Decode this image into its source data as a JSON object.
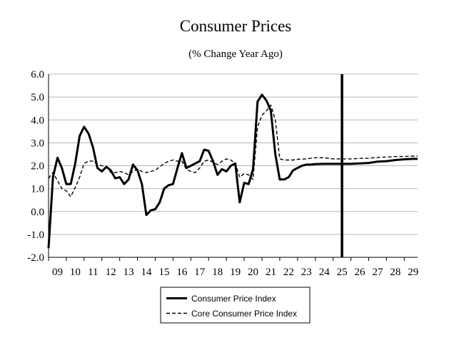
{
  "chart_data": {
    "type": "line",
    "title": "Consumer Prices",
    "subtitle": "(% Change Year Ago)",
    "xlabel": "",
    "ylabel": "",
    "ylim": [
      -2.0,
      6.0
    ],
    "yticks": [
      "6.0",
      "5.0",
      "4.0",
      "3.0",
      "2.0",
      "1.0",
      "0.0",
      "-1.0",
      "-2.0"
    ],
    "xlim": [
      2009.0,
      2029.75
    ],
    "xticks": [
      "09",
      "10",
      "11",
      "12",
      "13",
      "14",
      "15",
      "16",
      "17",
      "18",
      "19",
      "20",
      "21",
      "22",
      "23",
      "24",
      "25",
      "26",
      "27",
      "28",
      "29"
    ],
    "grid": true,
    "vertical_marker": 2025.5,
    "legend_position": "bottom",
    "series": [
      {
        "name": "Consumer Price Index",
        "style": "solid",
        "x": [
          2009.0,
          2009.25,
          2009.5,
          2009.75,
          2010.0,
          2010.25,
          2010.5,
          2010.75,
          2011.0,
          2011.25,
          2011.5,
          2011.75,
          2012.0,
          2012.25,
          2012.5,
          2012.75,
          2013.0,
          2013.25,
          2013.5,
          2013.75,
          2014.0,
          2014.25,
          2014.5,
          2014.75,
          2015.0,
          2015.25,
          2015.5,
          2015.75,
          2016.0,
          2016.25,
          2016.5,
          2016.75,
          2017.0,
          2017.25,
          2017.5,
          2017.75,
          2018.0,
          2018.25,
          2018.5,
          2018.75,
          2019.0,
          2019.25,
          2019.5,
          2019.75,
          2020.0,
          2020.25,
          2020.5,
          2020.75,
          2021.0,
          2021.25,
          2021.5,
          2021.75,
          2022.0,
          2022.25,
          2022.5,
          2022.75,
          2023.0,
          2023.25,
          2023.5,
          2023.75,
          2024.0,
          2024.5,
          2025.0,
          2025.5,
          2026.0,
          2026.5,
          2027.0,
          2027.5,
          2028.0,
          2028.5,
          2029.0,
          2029.5,
          2029.75
        ],
        "values": [
          -1.6,
          1.5,
          2.35,
          1.9,
          1.2,
          1.2,
          2.1,
          3.3,
          3.7,
          3.4,
          2.8,
          1.9,
          1.75,
          1.95,
          1.8,
          1.45,
          1.5,
          1.2,
          1.4,
          2.05,
          1.8,
          1.2,
          -0.15,
          0.05,
          0.1,
          0.4,
          1.0,
          1.15,
          1.2,
          1.9,
          2.55,
          1.9,
          2.0,
          2.1,
          2.2,
          2.7,
          2.65,
          2.2,
          1.6,
          1.85,
          1.75,
          2.0,
          2.1,
          0.4,
          1.25,
          1.2,
          1.85,
          4.8,
          5.1,
          4.85,
          4.4,
          2.5,
          1.4,
          1.4,
          1.5,
          1.8,
          1.9,
          2.0,
          2.05,
          2.05,
          2.07,
          2.08,
          2.08,
          2.08,
          2.08,
          2.1,
          2.12,
          2.18,
          2.2,
          2.25,
          2.28,
          2.3,
          2.3
        ]
      },
      {
        "name": "Core Consumer Price Index",
        "style": "dashed",
        "x": [
          2009.0,
          2009.25,
          2009.5,
          2009.75,
          2010.0,
          2010.25,
          2010.5,
          2010.75,
          2011.0,
          2011.25,
          2011.5,
          2011.75,
          2012.0,
          2012.25,
          2012.5,
          2012.75,
          2013.0,
          2013.25,
          2013.5,
          2013.75,
          2014.0,
          2014.25,
          2014.5,
          2014.75,
          2015.0,
          2015.25,
          2015.5,
          2015.75,
          2016.0,
          2016.25,
          2016.5,
          2016.75,
          2017.0,
          2017.25,
          2017.5,
          2017.75,
          2018.0,
          2018.25,
          2018.5,
          2018.75,
          2019.0,
          2019.25,
          2019.5,
          2019.75,
          2020.0,
          2020.25,
          2020.5,
          2020.75,
          2021.0,
          2021.25,
          2021.5,
          2021.75,
          2022.0,
          2022.25,
          2022.5,
          2022.75,
          2023.0,
          2023.5,
          2024.0,
          2024.5,
          2025.0,
          2025.5,
          2026.0,
          2026.5,
          2027.0,
          2027.5,
          2028.0,
          2028.5,
          2029.0,
          2029.5,
          2029.75
        ],
        "values": [
          1.45,
          1.7,
          1.35,
          1.0,
          0.9,
          0.65,
          1.05,
          1.5,
          2.1,
          2.2,
          2.2,
          2.05,
          2.0,
          1.95,
          1.7,
          1.7,
          1.75,
          1.7,
          1.6,
          1.75,
          1.85,
          1.75,
          1.7,
          1.75,
          1.8,
          1.95,
          2.1,
          2.2,
          2.25,
          2.2,
          2.2,
          1.85,
          1.75,
          1.7,
          1.9,
          2.2,
          2.25,
          2.15,
          2.05,
          2.2,
          2.3,
          2.25,
          2.1,
          1.5,
          1.65,
          1.6,
          1.4,
          3.7,
          4.2,
          4.4,
          4.65,
          4.0,
          2.3,
          2.25,
          2.25,
          2.25,
          2.28,
          2.3,
          2.35,
          2.35,
          2.3,
          2.3,
          2.3,
          2.32,
          2.33,
          2.36,
          2.38,
          2.4,
          2.4,
          2.42,
          2.42
        ]
      }
    ]
  }
}
